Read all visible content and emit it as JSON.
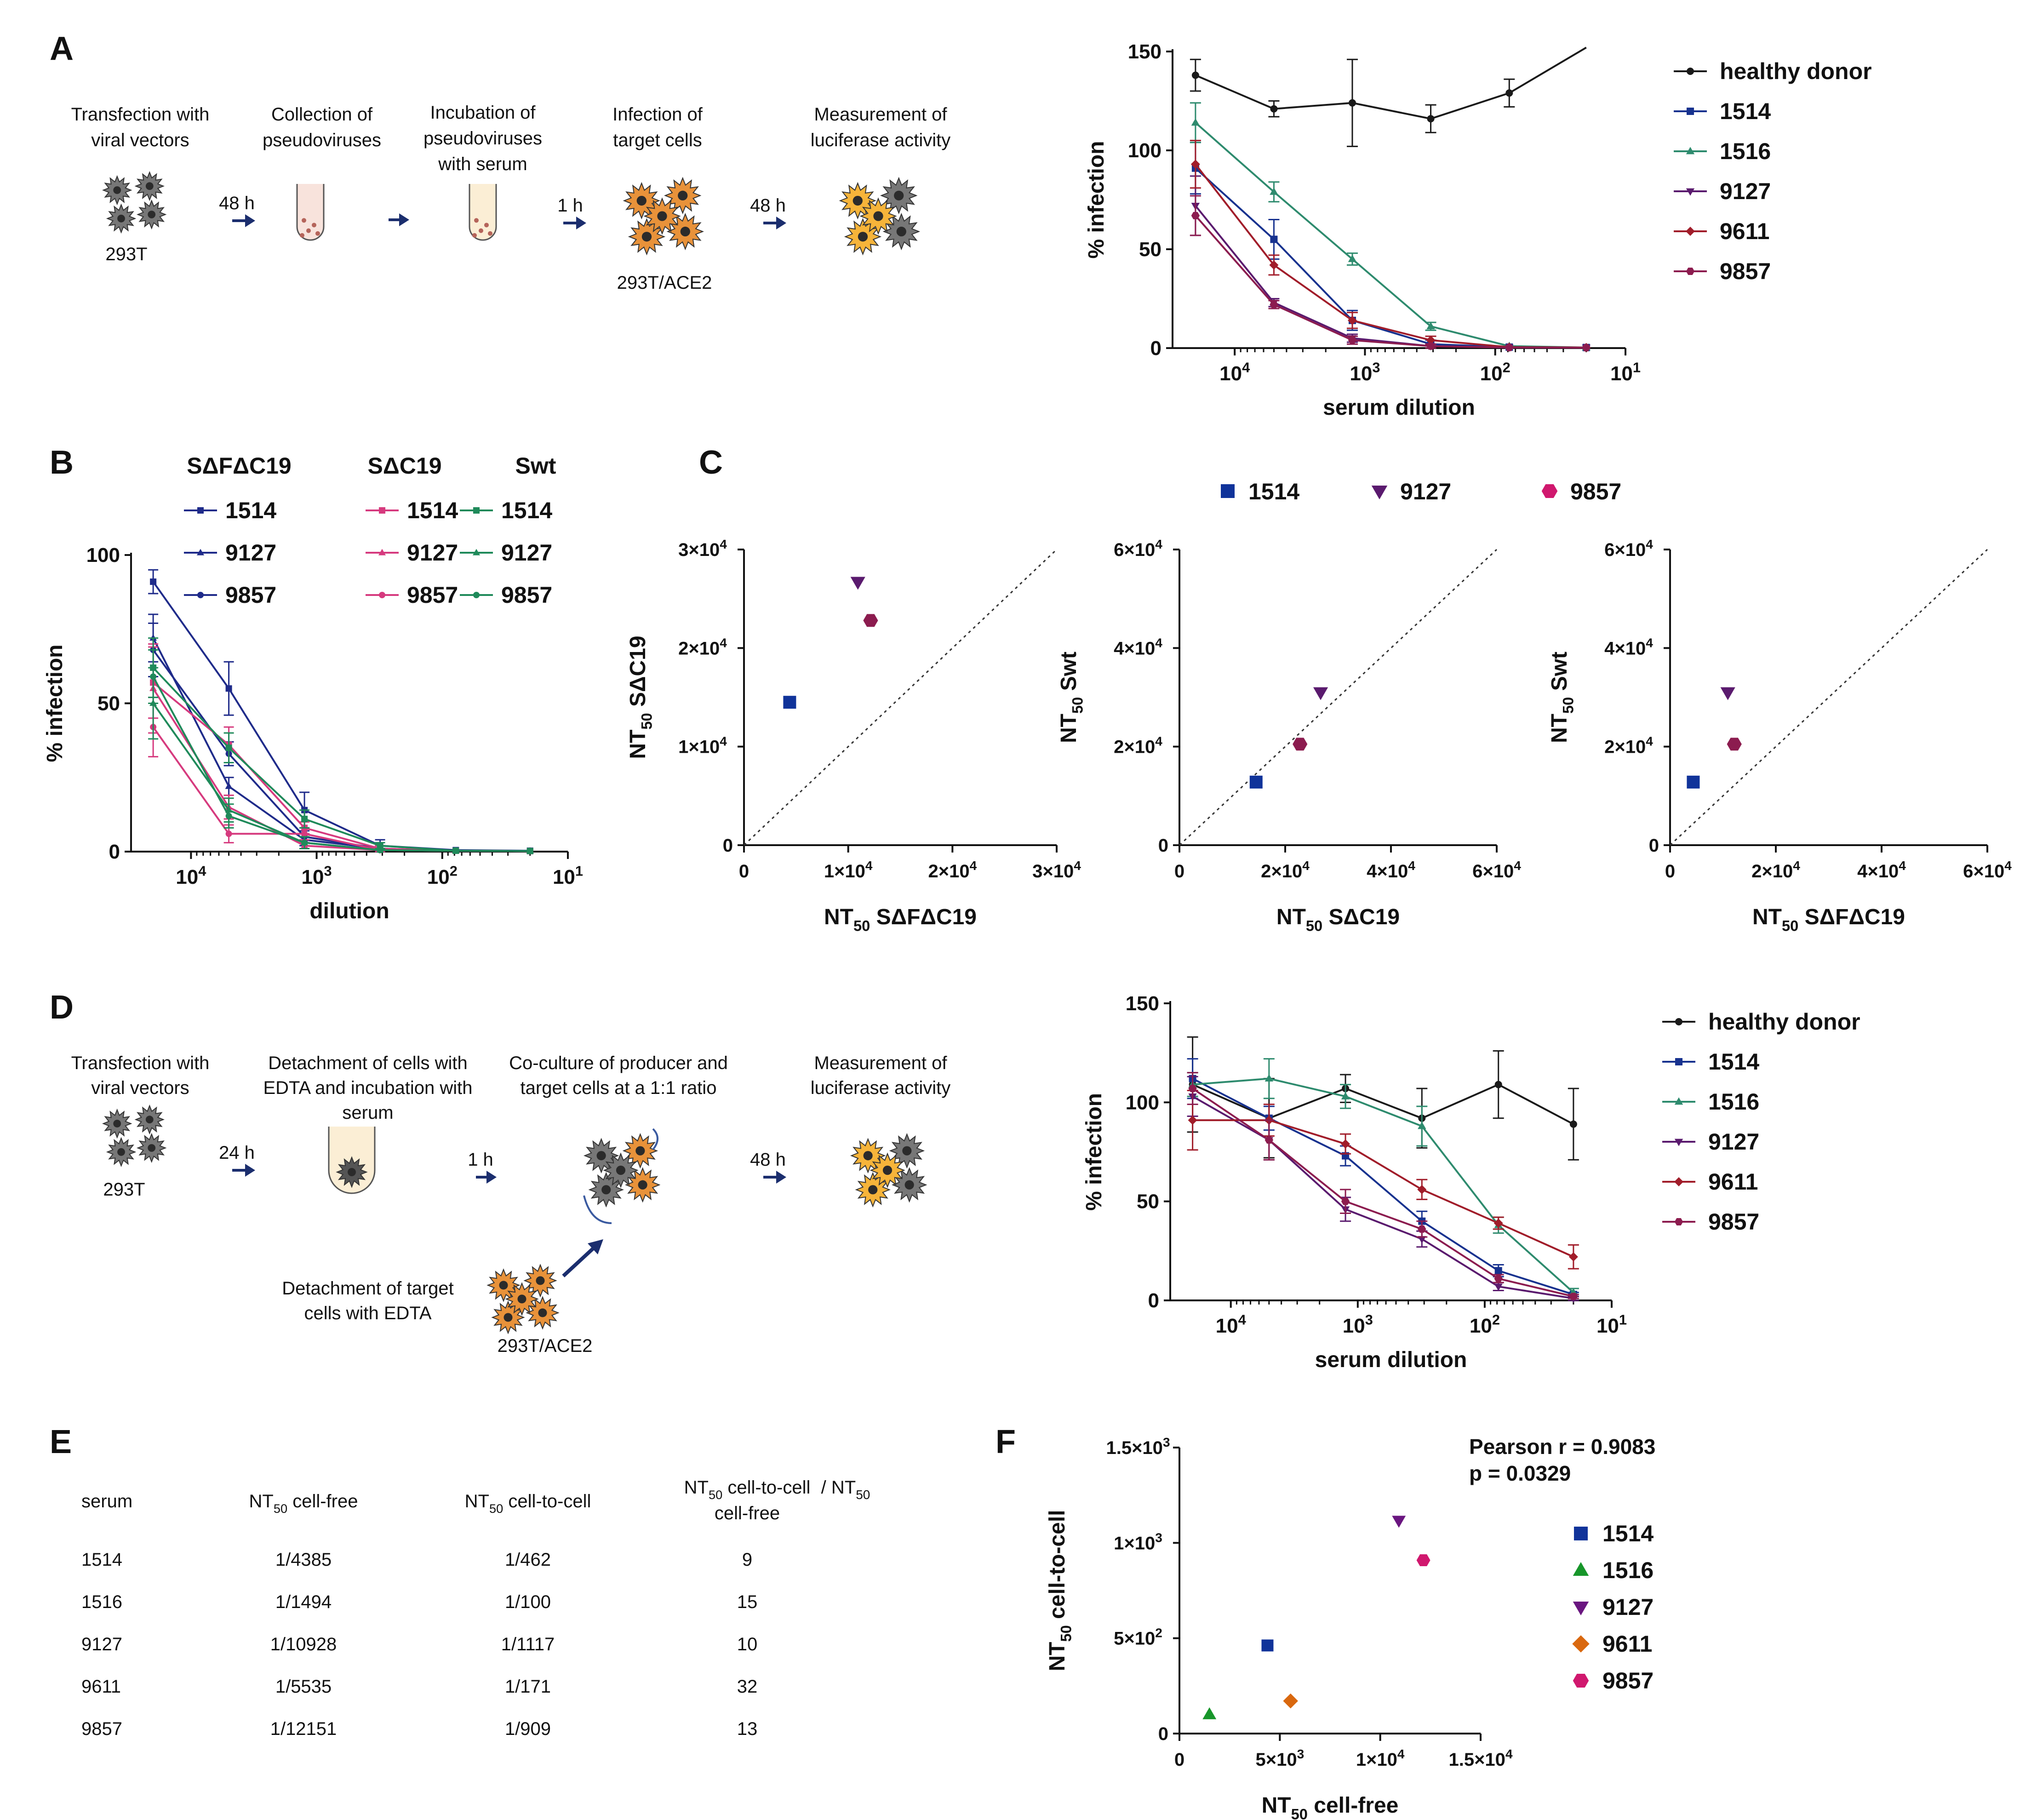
{
  "panel_letters": [
    "A",
    "B",
    "C",
    "D",
    "E",
    "F"
  ],
  "colors": {
    "healthy": "#1a1a1a",
    "s1514": "#17328f",
    "s1516": "#2e8b6e",
    "s9127": "#5a1a6e",
    "s9611": "#a11d2a",
    "s9857": "#8c1c4f",
    "b_dfc19": "#1f2b8a",
    "b_dc19": "#d63a7e",
    "b_swt": "#1f8a5a",
    "f1514": "#10339a",
    "f1516": "#17962a",
    "f9127": "#6a1680",
    "f9611": "#d9680f",
    "f9857": "#d0186e",
    "arrow": "#1b2e6e",
    "orange_cell": "#e8923a",
    "gray_cell": "#777777",
    "tube_fill": "#fbeed5"
  },
  "schematic_a": {
    "steps": [
      [
        "Transfection with",
        "viral vectors"
      ],
      [
        "Collection of",
        "pseudoviruses"
      ],
      [
        "Incubation of",
        "pseudoviruses",
        "with serum"
      ],
      [
        "Infection of",
        "target cells"
      ],
      [
        "Measurement of",
        "luciferase activity"
      ]
    ],
    "times": [
      "48 h",
      "1 h",
      "48 h"
    ],
    "cell_labels": [
      "293T",
      "293T/ACE2"
    ]
  },
  "schematic_d": {
    "steps": [
      [
        "Transfection with",
        "viral vectors"
      ],
      [
        "Detachment of cells with",
        "EDTA and incubation with",
        "serum"
      ],
      [
        "Co-culture of producer and",
        "target cells at a 1:1 ratio"
      ],
      [
        "Measurement of",
        "luciferase activity"
      ]
    ],
    "times": [
      "24 h",
      "1 h",
      "48 h"
    ],
    "target_step": [
      "Detachment of target",
      "cells with EDTA"
    ],
    "cell_labels": [
      "293T",
      "293T/ACE2"
    ]
  },
  "table_e": {
    "headers": [
      "serum",
      "NT50 cell-free",
      "NT50 cell-to-cell",
      "NT50 cell-to-cell / NT50",
      "cell-free"
    ],
    "rows": [
      [
        "1514",
        "1/4385",
        "1/462",
        "9"
      ],
      [
        "1516",
        "1/1494",
        "1/100",
        "15"
      ],
      [
        "9127",
        "1/10928",
        "1/1117",
        "10"
      ],
      [
        "9611",
        "1/5535",
        "1/171",
        "32"
      ],
      [
        "9857",
        "1/12151",
        "1/909",
        "13"
      ]
    ]
  },
  "chart_data": [
    {
      "id": "A",
      "type": "line",
      "xscale": "log-reversed",
      "x": [
        20000,
        5000,
        1250,
        312.5,
        78,
        20
      ],
      "xlim": [
        30000,
        10
      ],
      "xticks": [
        "10^4",
        "10^3",
        "10^2",
        "10^1"
      ],
      "xlabel": "serum dilution",
      "ylabel": "% infection",
      "ylim": [
        0,
        150
      ],
      "yticks": [
        0,
        50,
        100,
        150
      ],
      "series": [
        {
          "name": "healthy donor",
          "values": [
            138,
            121,
            124,
            116,
            129,
            152
          ],
          "errors": [
            8,
            4,
            22,
            7,
            7,
            0
          ],
          "marker": "circle",
          "color_key": "healthy"
        },
        {
          "name": "1514",
          "values": [
            91,
            55,
            14,
            2,
            0.5,
            0.3
          ],
          "errors": [
            13,
            10,
            5,
            2,
            0.5,
            0
          ],
          "marker": "square",
          "color_key": "s1514"
        },
        {
          "name": "1516",
          "values": [
            114,
            79,
            45,
            11,
            1,
            0.3
          ],
          "errors": [
            10,
            5,
            3,
            2,
            0.5,
            0
          ],
          "marker": "triangle",
          "color_key": "s1516"
        },
        {
          "name": "9127",
          "values": [
            72,
            23,
            5,
            1,
            0.3,
            0.2
          ],
          "errors": [
            15,
            2,
            2,
            1,
            0.3,
            0
          ],
          "marker": "triangle-down",
          "color_key": "s9127"
        },
        {
          "name": "9611",
          "values": [
            93,
            42,
            14,
            4,
            0.5,
            0.3
          ],
          "errors": [
            12,
            5,
            4,
            2,
            0.5,
            0
          ],
          "marker": "diamond",
          "color_key": "s9611"
        },
        {
          "name": "9857",
          "values": [
            67,
            22,
            4,
            1,
            0.3,
            0.2
          ],
          "errors": [
            10,
            2,
            2,
            1,
            0.3,
            0
          ],
          "marker": "hexagon",
          "color_key": "s9857"
        }
      ],
      "legend": "right"
    },
    {
      "id": "B",
      "type": "line",
      "xscale": "log-reversed",
      "x": [
        20000,
        5000,
        1250,
        312.5,
        78,
        20
      ],
      "xlim": [
        30000,
        10
      ],
      "xticks": [
        "10^4",
        "10^3",
        "10^2",
        "10^1"
      ],
      "xlabel": "dilution",
      "ylabel": "% infection",
      "ylim": [
        0,
        100
      ],
      "yticks": [
        0,
        50,
        100
      ],
      "group_titles": [
        "SΔFΔC19",
        "SΔC19",
        "Swt"
      ],
      "series": [
        {
          "name": "1514",
          "group": "SΔFΔC19",
          "values": [
            91,
            55,
            14,
            2,
            0.5,
            0.3
          ],
          "errors": [
            4,
            9,
            6,
            2,
            0.5,
            0
          ],
          "marker": "square",
          "color_key": "b_dfc19"
        },
        {
          "name": "9127",
          "group": "SΔFΔC19",
          "values": [
            72,
            22,
            4,
            1,
            0.3,
            0.2
          ],
          "errors": [
            8,
            3,
            2,
            1,
            0.3,
            0
          ],
          "marker": "triangle",
          "color_key": "b_dfc19"
        },
        {
          "name": "9857",
          "group": "SΔFΔC19",
          "values": [
            68,
            33,
            5,
            1,
            0.3,
            0.2
          ],
          "errors": [
            9,
            4,
            2,
            1,
            0.3,
            0
          ],
          "marker": "circle",
          "color_key": "b_dfc19"
        },
        {
          "name": "1514",
          "group": "SΔC19",
          "values": [
            57,
            36,
            8,
            1,
            0.3,
            0.2
          ],
          "errors": [
            12,
            6,
            2,
            1,
            0.3,
            0
          ],
          "marker": "square",
          "color_key": "b_dc19"
        },
        {
          "name": "9127",
          "group": "SΔC19",
          "values": [
            55,
            15,
            2,
            0.5,
            0.3,
            0.2
          ],
          "errors": [
            15,
            4,
            1,
            0.5,
            0.3,
            0
          ],
          "marker": "triangle",
          "color_key": "b_dc19"
        },
        {
          "name": "9857",
          "group": "SΔC19",
          "values": [
            42,
            6,
            6,
            0.5,
            0.3,
            0.2
          ],
          "errors": [
            10,
            3,
            2,
            0.5,
            0.3,
            0
          ],
          "marker": "circle",
          "color_key": "b_dc19"
        },
        {
          "name": "1514",
          "group": "Swt",
          "values": [
            62,
            35,
            11,
            2,
            0.3,
            0.2
          ],
          "errors": [
            10,
            5,
            3,
            1,
            0.3,
            0
          ],
          "marker": "square",
          "color_key": "b_swt"
        },
        {
          "name": "9127",
          "group": "Swt",
          "values": [
            50,
            14,
            3,
            0.5,
            0.3,
            0.2
          ],
          "errors": [
            12,
            4,
            2,
            0.5,
            0.3,
            0
          ],
          "marker": "triangle",
          "color_key": "b_swt"
        },
        {
          "name": "9857",
          "group": "Swt",
          "values": [
            59,
            12,
            3,
            0.5,
            0.3,
            0.2
          ],
          "errors": [
            9,
            4,
            2,
            0.5,
            0.3,
            0
          ],
          "marker": "circle",
          "color_key": "b_swt"
        }
      ],
      "legend": "top-right"
    },
    {
      "id": "C1",
      "type": "scatter",
      "xlabel": "NT50 SΔFΔC19",
      "ylabel": "NT50 SΔC19",
      "xlim": [
        0,
        30000
      ],
      "ylim": [
        0,
        30000
      ],
      "xticks": [
        0,
        10000,
        20000,
        30000
      ],
      "yticks": [
        0,
        10000,
        20000,
        30000
      ],
      "tick_labels": [
        "0",
        "1×10⁴",
        "2×10⁴",
        "3×10⁴"
      ],
      "identity_line": true,
      "points": [
        {
          "name": "1514",
          "x": 4385,
          "y": 14500,
          "marker": "square",
          "color_key": "f1514"
        },
        {
          "name": "9127",
          "x": 10928,
          "y": 26700,
          "marker": "triangle-down",
          "color_key": "s9127"
        },
        {
          "name": "9857",
          "x": 12151,
          "y": 22800,
          "marker": "hexagon",
          "color_key": "s9857"
        }
      ]
    },
    {
      "id": "C2",
      "type": "scatter",
      "xlabel": "NT50 SΔC19",
      "ylabel": "NT50 Swt",
      "xlim": [
        0,
        60000
      ],
      "ylim": [
        0,
        60000
      ],
      "xticks": [
        0,
        20000,
        40000,
        60000
      ],
      "yticks": [
        0,
        20000,
        40000,
        60000
      ],
      "tick_labels": [
        "0",
        "2×10⁴",
        "4×10⁴",
        "6×10⁴"
      ],
      "identity_line": true,
      "points": [
        {
          "name": "1514",
          "x": 14500,
          "y": 12800,
          "marker": "square",
          "color_key": "f1514"
        },
        {
          "name": "9127",
          "x": 26700,
          "y": 31000,
          "marker": "triangle-down",
          "color_key": "s9127"
        },
        {
          "name": "9857",
          "x": 22800,
          "y": 20500,
          "marker": "hexagon",
          "color_key": "s9857"
        }
      ]
    },
    {
      "id": "C3",
      "type": "scatter",
      "xlabel": "NT50 SΔFΔC19",
      "ylabel": "NT50 Swt",
      "xlim": [
        0,
        60000
      ],
      "ylim": [
        0,
        60000
      ],
      "xticks": [
        0,
        20000,
        40000,
        60000
      ],
      "yticks": [
        0,
        20000,
        40000,
        60000
      ],
      "tick_labels": [
        "0",
        "2×10⁴",
        "4×10⁴",
        "6×10⁴"
      ],
      "identity_line": true,
      "points": [
        {
          "name": "1514",
          "x": 4385,
          "y": 12800,
          "marker": "square",
          "color_key": "f1514"
        },
        {
          "name": "9127",
          "x": 10928,
          "y": 31000,
          "marker": "triangle-down",
          "color_key": "s9127"
        },
        {
          "name": "9857",
          "x": 12151,
          "y": 20500,
          "marker": "hexagon",
          "color_key": "s9857"
        }
      ]
    },
    {
      "id": "C-legend",
      "type": "legend",
      "entries": [
        {
          "name": "1514",
          "marker": "square",
          "color_key": "f1514"
        },
        {
          "name": "9127",
          "marker": "triangle-down",
          "color_key": "s9127"
        },
        {
          "name": "9857",
          "marker": "hexagon",
          "color_key": "f9857"
        }
      ]
    },
    {
      "id": "D",
      "type": "line",
      "xscale": "log-reversed",
      "x": [
        20000,
        5000,
        1250,
        312.5,
        78,
        20
      ],
      "xlim": [
        30000,
        10
      ],
      "xticks": [
        "10^4",
        "10^3",
        "10^2",
        "10^1"
      ],
      "xlabel": "serum dilution",
      "ylabel": "% infection",
      "ylim": [
        0,
        150
      ],
      "yticks": [
        0,
        50,
        100,
        150
      ],
      "series": [
        {
          "name": "healthy donor",
          "values": [
            109,
            92,
            107,
            92,
            109,
            89
          ],
          "errors": [
            24,
            20,
            7,
            15,
            17,
            18
          ],
          "marker": "circle",
          "color_key": "healthy"
        },
        {
          "name": "1514",
          "values": [
            112,
            92,
            73,
            40,
            15,
            3
          ],
          "errors": [
            10,
            6,
            5,
            5,
            3,
            1
          ],
          "marker": "square",
          "color_key": "s1514"
        },
        {
          "name": "1516",
          "values": [
            109,
            112,
            103,
            88,
            38,
            4
          ],
          "errors": [
            6,
            10,
            6,
            10,
            4,
            2
          ],
          "marker": "triangle",
          "color_key": "s1516"
        },
        {
          "name": "9127",
          "values": [
            103,
            81,
            46,
            31,
            7,
            1
          ],
          "errors": [
            10,
            10,
            6,
            4,
            2,
            1
          ],
          "marker": "triangle-down",
          "color_key": "s9127"
        },
        {
          "name": "9611",
          "values": [
            91,
            91,
            79,
            56,
            39,
            22
          ],
          "errors": [
            15,
            8,
            5,
            5,
            3,
            6
          ],
          "marker": "diamond",
          "color_key": "s9611"
        },
        {
          "name": "9857",
          "values": [
            107,
            81,
            50,
            36,
            11,
            2
          ],
          "errors": [
            8,
            10,
            6,
            4,
            2,
            1
          ],
          "marker": "hexagon",
          "color_key": "s9857"
        }
      ],
      "legend": "right"
    },
    {
      "id": "F",
      "type": "scatter",
      "xlabel": "NT50 cell-free",
      "ylabel": "NT50 cell-to-cell",
      "xlim": [
        0,
        15000
      ],
      "ylim": [
        0,
        1500
      ],
      "xticks": [
        0,
        5000,
        10000,
        15000
      ],
      "yticks": [
        0,
        500,
        1000,
        1500
      ],
      "xtick_labels": [
        "0",
        "5×10³",
        "1×10⁴",
        "1.5×10⁴"
      ],
      "ytick_labels": [
        "0",
        "5×10²",
        "1×10³",
        "1.5×10³"
      ],
      "annotation": [
        "Pearson r = 0.9083",
        "p = 0.0329"
      ],
      "points": [
        {
          "name": "1514",
          "x": 4385,
          "y": 462,
          "marker": "square",
          "color_key": "f1514"
        },
        {
          "name": "1516",
          "x": 1494,
          "y": 100,
          "marker": "triangle",
          "color_key": "f1516"
        },
        {
          "name": "9127",
          "x": 10928,
          "y": 1117,
          "marker": "triangle-down",
          "color_key": "f9127"
        },
        {
          "name": "9611",
          "x": 5535,
          "y": 171,
          "marker": "diamond",
          "color_key": "f9611"
        },
        {
          "name": "9857",
          "x": 12151,
          "y": 909,
          "marker": "hexagon",
          "color_key": "f9857"
        }
      ],
      "legend": "right"
    }
  ]
}
